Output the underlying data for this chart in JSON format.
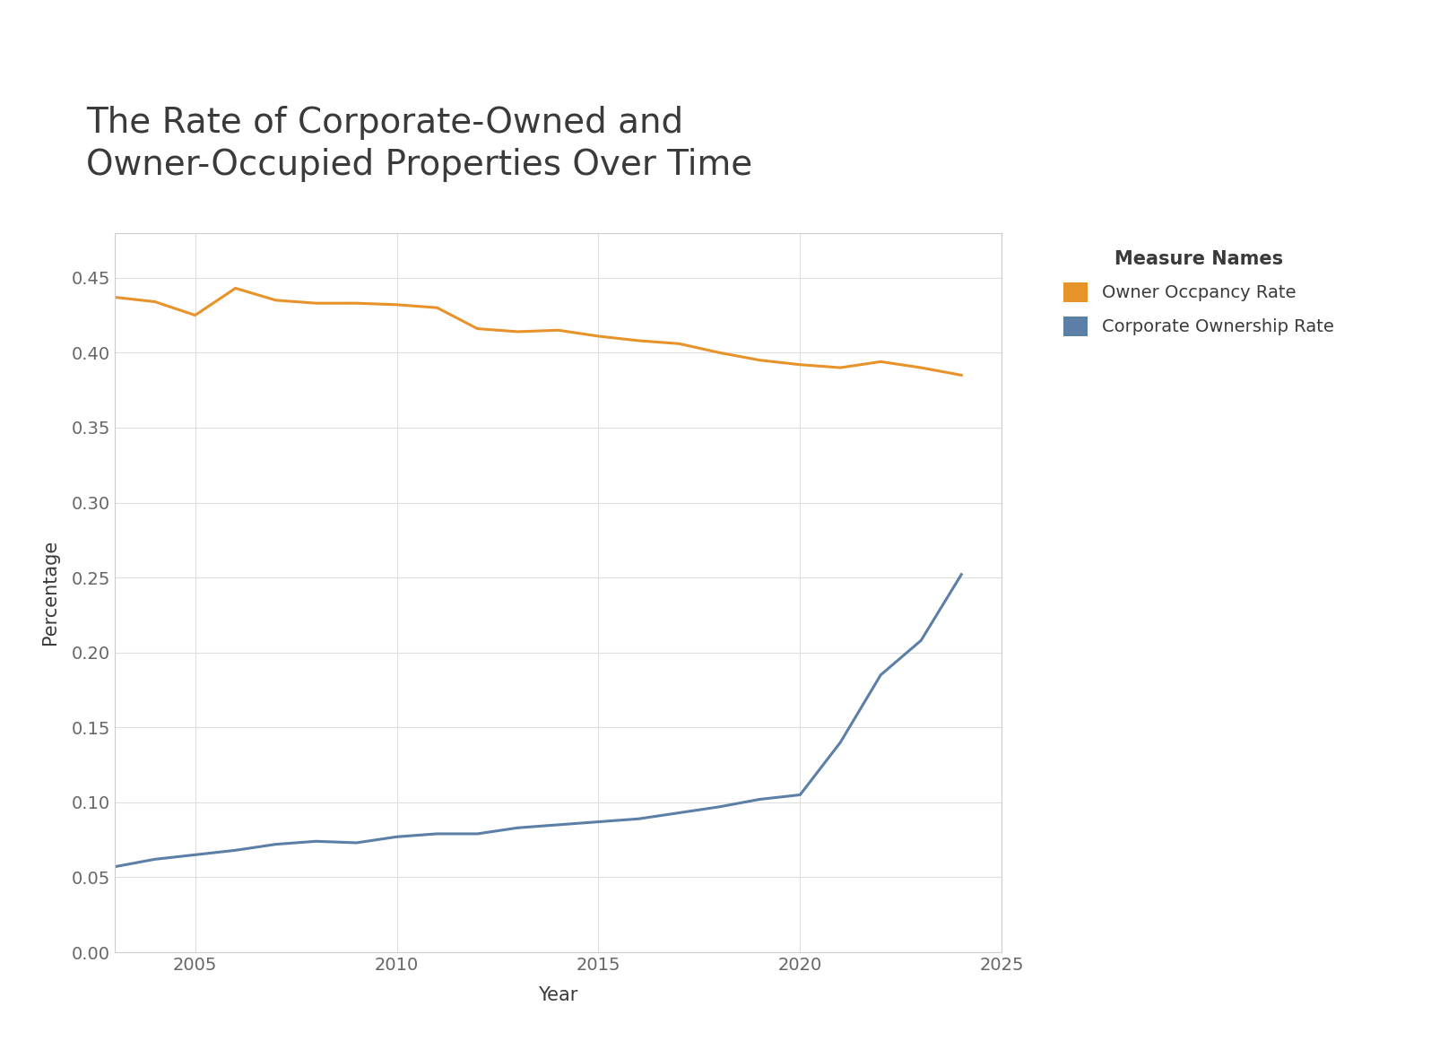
{
  "title": "The Rate of Corporate-Owned and\nOwner-Occupied Properties Over Time",
  "xlabel": "Year",
  "ylabel": "Percentage",
  "legend_title": "Measure Names",
  "legend_labels": [
    "Owner Occpancy Rate",
    "Corporate Ownership Rate"
  ],
  "owner_color": "#E8922A",
  "corporate_color": "#5B7FA6",
  "background_color": "#ffffff",
  "owner_years": [
    2003,
    2004,
    2005,
    2006,
    2007,
    2008,
    2009,
    2010,
    2011,
    2012,
    2013,
    2014,
    2015,
    2016,
    2017,
    2018,
    2019,
    2020,
    2021,
    2022,
    2023,
    2024
  ],
  "owner_values": [
    0.437,
    0.434,
    0.425,
    0.443,
    0.435,
    0.433,
    0.433,
    0.432,
    0.43,
    0.416,
    0.414,
    0.415,
    0.411,
    0.408,
    0.406,
    0.4,
    0.395,
    0.392,
    0.39,
    0.394,
    0.39,
    0.385
  ],
  "corporate_years": [
    2003,
    2004,
    2005,
    2006,
    2007,
    2008,
    2009,
    2010,
    2011,
    2012,
    2013,
    2014,
    2015,
    2016,
    2017,
    2018,
    2019,
    2020,
    2021,
    2022,
    2023,
    2024
  ],
  "corporate_values": [
    0.057,
    0.062,
    0.065,
    0.068,
    0.072,
    0.074,
    0.073,
    0.077,
    0.079,
    0.079,
    0.083,
    0.085,
    0.087,
    0.089,
    0.093,
    0.097,
    0.102,
    0.105,
    0.14,
    0.185,
    0.208,
    0.252
  ],
  "ylim": [
    0.0,
    0.48
  ],
  "xlim": [
    2003,
    2025
  ],
  "yticks": [
    0.0,
    0.05,
    0.1,
    0.15,
    0.2,
    0.25,
    0.3,
    0.35,
    0.4,
    0.45
  ],
  "xticks": [
    2005,
    2010,
    2015,
    2020,
    2025
  ],
  "title_fontsize": 28,
  "label_fontsize": 15,
  "tick_fontsize": 14,
  "legend_fontsize": 14,
  "legend_title_fontsize": 15,
  "line_width": 2.2,
  "text_color": "#3a3a3a",
  "grid_color": "#dddddd",
  "spine_color": "#cccccc"
}
